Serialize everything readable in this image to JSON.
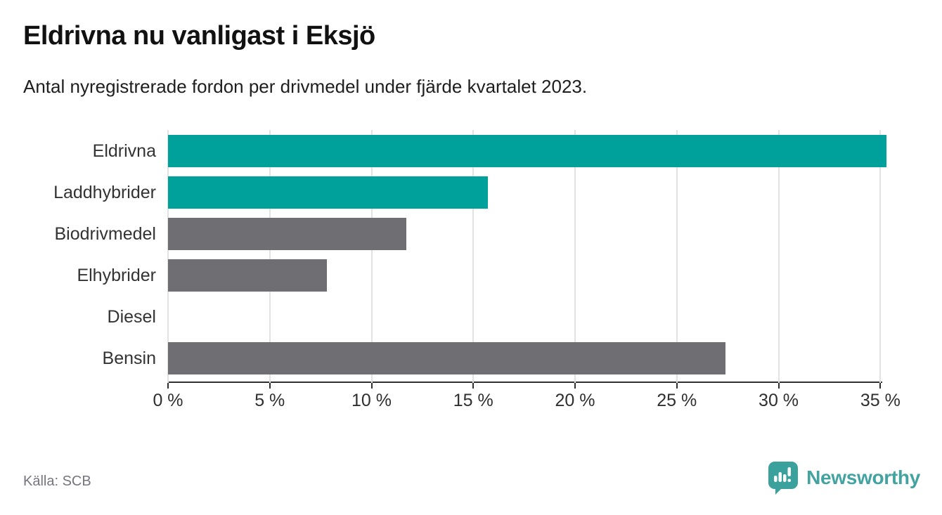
{
  "header": {
    "title": "Eldrivna nu vanligast i Eksjö",
    "subtitle": "Antal nyregistrerade fordon per drivmedel under fjärde kvartalet 2023."
  },
  "chart_data": {
    "type": "bar",
    "orientation": "horizontal",
    "title": "Eldrivna nu vanligast i Eksjö",
    "subtitle": "Antal nyregistrerade fordon per drivmedel under fjärde kvartalet 2023.",
    "categories": [
      "Eldrivna",
      "Laddhybrider",
      "Biodrivmedel",
      "Elhybrider",
      "Diesel",
      "Bensin"
    ],
    "values": [
      35.3,
      15.7,
      11.7,
      7.8,
      0,
      27.4
    ],
    "unit": "%",
    "xlabel": "",
    "ylabel": "",
    "xlim": [
      0,
      35.3
    ],
    "x_ticks": [
      0,
      5,
      10,
      15,
      20,
      25,
      30,
      35
    ],
    "x_tick_labels": [
      "0 %",
      "5 %",
      "10 %",
      "15 %",
      "20 %",
      "25 %",
      "30 %",
      "35 %"
    ],
    "grid": true,
    "legend": false,
    "bar_colors": [
      "#00a19a",
      "#00a19a",
      "#6e6e73",
      "#6e6e73",
      "#6e6e73",
      "#6e6e73"
    ],
    "highlight_color": "#00a19a",
    "default_color": "#6e6e73"
  },
  "footer": {
    "source": "Källa: SCB",
    "brand": "Newsworthy"
  },
  "colors": {
    "background": "#ffffff",
    "teal_bar": "#00a19a",
    "gray_bar": "#6e6e73",
    "gridline": "#e2e2e2",
    "axis": "#2f2f2f",
    "source_text": "#75757e",
    "logo_teal": "#43a3a0"
  },
  "icons": {
    "logo": "newsworthy-speech-bubble-bar-chart-icon"
  }
}
